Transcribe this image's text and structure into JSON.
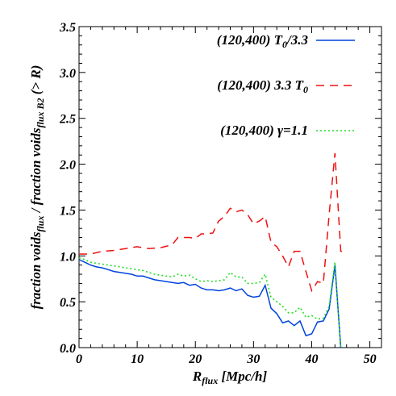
{
  "chart_data": {
    "type": "line",
    "xlabel": "R",
    "xlabel_sub": "flux",
    "xlabel_unit": " [Mpc/h]",
    "ylabel_parts": {
      "a": "fraction voids",
      "a_sub": "flux",
      "b": " / fraction voids",
      "b_sub": "flux B2",
      "c": " (> R)"
    },
    "xlim": [
      0,
      52
    ],
    "ylim": [
      0,
      3.5
    ],
    "xticks": [
      "0",
      "10",
      "20",
      "30",
      "40",
      "50"
    ],
    "xtick_values": [
      0,
      10,
      20,
      30,
      40,
      50
    ],
    "yticks": [
      "0.0",
      "0.5",
      "1.0",
      "1.5",
      "2.0",
      "2.5",
      "3.0",
      "3.5"
    ],
    "ytick_values": [
      0,
      0.5,
      1.0,
      1.5,
      2.0,
      2.5,
      3.0,
      3.5
    ],
    "legend_position": "top-right",
    "series": [
      {
        "name": "(120,400) T0/3.3",
        "legend_main": "(120,400) T",
        "legend_sub": "0",
        "legend_tail": "/3.3",
        "color": "#0044dd",
        "dash": "solid",
        "x": [
          0,
          1,
          2,
          3,
          4,
          5,
          6,
          7,
          8,
          9,
          10,
          11,
          12,
          13,
          14,
          15,
          16,
          17,
          18,
          19,
          20,
          21,
          22,
          23,
          24,
          25,
          26,
          27,
          28,
          29,
          30,
          31,
          32,
          33,
          34,
          35,
          36,
          37,
          38,
          39,
          40,
          41,
          42,
          43,
          44,
          45
        ],
        "values": [
          0.96,
          0.93,
          0.9,
          0.88,
          0.87,
          0.85,
          0.83,
          0.82,
          0.81,
          0.8,
          0.78,
          0.78,
          0.76,
          0.74,
          0.73,
          0.72,
          0.71,
          0.7,
          0.71,
          0.68,
          0.69,
          0.65,
          0.63,
          0.63,
          0.62,
          0.63,
          0.65,
          0.62,
          0.64,
          0.57,
          0.55,
          0.56,
          0.68,
          0.43,
          0.37,
          0.27,
          0.29,
          0.24,
          0.29,
          0.13,
          0.15,
          0.28,
          0.29,
          0.42,
          0.9,
          0.0
        ]
      },
      {
        "name": "(120,400) 3.3 T0",
        "legend_main": "(120,400) 3.3 T",
        "legend_sub": "0",
        "legend_tail": "",
        "color": "#ee1111",
        "dash": "10 7",
        "x": [
          0,
          2,
          4,
          6,
          8,
          10,
          12,
          14,
          16,
          17,
          18,
          19,
          20,
          21,
          22,
          23,
          24,
          25,
          26,
          27,
          28,
          29,
          30,
          31,
          32,
          33,
          34,
          35,
          36,
          37,
          38,
          39,
          40,
          41,
          42,
          43,
          44,
          45,
          46
        ],
        "values": [
          1.02,
          1.02,
          1.05,
          1.06,
          1.08,
          1.1,
          1.08,
          1.09,
          1.12,
          1.2,
          1.2,
          1.2,
          1.19,
          1.24,
          1.24,
          1.25,
          1.38,
          1.43,
          1.52,
          1.48,
          1.5,
          1.45,
          1.35,
          1.38,
          1.43,
          1.15,
          1.1,
          1.0,
          0.88,
          1.05,
          1.05,
          0.83,
          0.62,
          0.72,
          0.7,
          1.45,
          2.12,
          1.05,
          1.05
        ]
      },
      {
        "name": "(120,400) γ=1.1",
        "legend_main": "(120,400) γ=1.1",
        "legend_sub": "",
        "legend_tail": "",
        "color": "#22dd22",
        "dash": "2 3",
        "x": [
          0,
          1,
          2,
          3,
          4,
          5,
          6,
          7,
          8,
          9,
          10,
          11,
          12,
          13,
          14,
          15,
          16,
          17,
          18,
          19,
          20,
          21,
          22,
          23,
          24,
          25,
          26,
          27,
          28,
          29,
          30,
          31,
          32,
          33,
          34,
          35,
          36,
          37,
          38,
          39,
          40,
          41,
          42,
          43,
          44,
          45
        ],
        "values": [
          0.98,
          0.96,
          0.93,
          0.92,
          0.91,
          0.9,
          0.89,
          0.88,
          0.87,
          0.86,
          0.85,
          0.84,
          0.82,
          0.8,
          0.79,
          0.78,
          0.77,
          0.8,
          0.78,
          0.79,
          0.75,
          0.72,
          0.73,
          0.72,
          0.73,
          0.74,
          0.82,
          0.77,
          0.77,
          0.7,
          0.7,
          0.71,
          0.8,
          0.55,
          0.5,
          0.45,
          0.38,
          0.38,
          0.44,
          0.33,
          0.35,
          0.31,
          0.32,
          0.45,
          0.93,
          0.0
        ]
      }
    ]
  }
}
